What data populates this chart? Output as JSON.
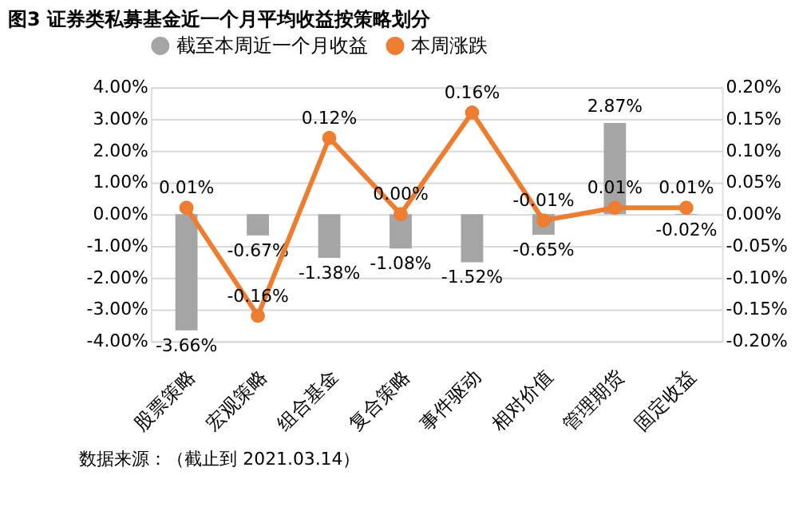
{
  "chart_data": {
    "type": "bar",
    "title": "图3 证券类私募基金近一个月平均收益按策略划分",
    "categories": [
      "股票策略",
      "宏观策略",
      "组合基金",
      "复合策略",
      "事件驱动",
      "相对价值",
      "管理期货",
      "固定收益"
    ],
    "series": [
      {
        "name": "截至本周近一个月收益",
        "color": "#a5a5a5",
        "values": [
          -3.66,
          -0.67,
          -1.38,
          -1.08,
          -1.52,
          -0.65,
          2.87,
          -0.02
        ],
        "value_labels": [
          "-3.66%",
          "-0.67%",
          "-1.38%",
          "-1.08%",
          "-1.52%",
          "-0.65%",
          "2.87%",
          "-0.02%"
        ]
      },
      {
        "name": "本周涨跌",
        "type": "line",
        "axis": "y2",
        "color": "#ed7d31",
        "marker": "circle",
        "values": [
          0.01,
          -0.16,
          0.12,
          0.0,
          0.16,
          -0.01,
          0.01,
          0.01
        ],
        "value_labels": [
          "0.01%",
          "-0.16%",
          "0.12%",
          "0.00%",
          "0.16%",
          "-0.01%",
          "0.01%",
          "0.01%"
        ]
      }
    ],
    "ylim": [
      -4,
      4
    ],
    "yticks": [
      {
        "value": -4,
        "label": "-4.00%"
      },
      {
        "value": -3,
        "label": "-3.00%"
      },
      {
        "value": -2,
        "label": "-2.00%"
      },
      {
        "value": -1,
        "label": "-1.00%"
      },
      {
        "value": 0,
        "label": "0.00%"
      },
      {
        "value": 1,
        "label": "1.00%"
      },
      {
        "value": 2,
        "label": "2.00%"
      },
      {
        "value": 3,
        "label": "3.00%"
      },
      {
        "value": 4,
        "label": "4.00%"
      }
    ],
    "y2lim": [
      -0.2,
      0.2
    ],
    "y2ticks": [
      {
        "value": -0.2,
        "label": "-0.20%"
      },
      {
        "value": -0.15,
        "label": "-0.15%"
      },
      {
        "value": -0.1,
        "label": "-0.10%"
      },
      {
        "value": -0.05,
        "label": "-0.05%"
      },
      {
        "value": 0,
        "label": "0.00%"
      },
      {
        "value": 0.05,
        "label": "0.05%"
      },
      {
        "value": 0.1,
        "label": "0.10%"
      },
      {
        "value": 0.15,
        "label": "0.15%"
      },
      {
        "value": 0.2,
        "label": "0.20%"
      }
    ],
    "grid": "y",
    "legend": "top",
    "annotations": [
      "数据来源：（截止到 2021.03.14）"
    ]
  }
}
